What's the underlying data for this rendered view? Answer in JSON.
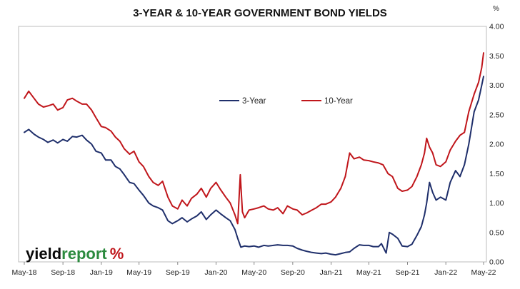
{
  "chart_data": {
    "type": "line",
    "title": "3-YEAR & 10-YEAR GOVERNMENT BOND YIELDS",
    "y_unit": "%",
    "ylim": [
      0,
      4.0
    ],
    "y_ticks": [
      "0.00",
      "0.50",
      "1.00",
      "1.50",
      "2.00",
      "2.50",
      "3.00",
      "3.50",
      "4.00"
    ],
    "x_range": [
      "2018-05-01",
      "2022-05-01"
    ],
    "x_ticks": [
      {
        "label": "May-18",
        "date": "2018-05-01"
      },
      {
        "label": "Sep-18",
        "date": "2018-09-01"
      },
      {
        "label": "Jan-19",
        "date": "2019-01-01"
      },
      {
        "label": "May-19",
        "date": "2019-05-01"
      },
      {
        "label": "Sep-19",
        "date": "2019-09-01"
      },
      {
        "label": "Jan-20",
        "date": "2020-01-01"
      },
      {
        "label": "May-20",
        "date": "2020-05-01"
      },
      {
        "label": "Sep-20",
        "date": "2020-09-01"
      },
      {
        "label": "Jan-21",
        "date": "2021-01-01"
      },
      {
        "label": "May-21",
        "date": "2021-05-01"
      },
      {
        "label": "Sep-21",
        "date": "2021-09-01"
      },
      {
        "label": "Jan-22",
        "date": "2022-01-01"
      },
      {
        "label": "May-22",
        "date": "2022-05-01"
      }
    ],
    "grid": "none",
    "legend_placement": "upper-center",
    "series": [
      {
        "name": "3-Year",
        "color": "#1f2f6b",
        "points": [
          [
            "2018-05-01",
            2.2
          ],
          [
            "2018-05-15",
            2.25
          ],
          [
            "2018-06-01",
            2.17
          ],
          [
            "2018-06-15",
            2.12
          ],
          [
            "2018-07-01",
            2.08
          ],
          [
            "2018-07-15",
            2.03
          ],
          [
            "2018-08-01",
            2.07
          ],
          [
            "2018-08-15",
            2.02
          ],
          [
            "2018-09-01",
            2.08
          ],
          [
            "2018-09-15",
            2.05
          ],
          [
            "2018-10-01",
            2.13
          ],
          [
            "2018-10-15",
            2.12
          ],
          [
            "2018-11-01",
            2.15
          ],
          [
            "2018-11-15",
            2.07
          ],
          [
            "2018-12-01",
            2.0
          ],
          [
            "2018-12-15",
            1.88
          ],
          [
            "2019-01-01",
            1.85
          ],
          [
            "2019-01-15",
            1.73
          ],
          [
            "2019-02-01",
            1.73
          ],
          [
            "2019-02-15",
            1.62
          ],
          [
            "2019-03-01",
            1.58
          ],
          [
            "2019-03-15",
            1.48
          ],
          [
            "2019-04-01",
            1.35
          ],
          [
            "2019-04-15",
            1.33
          ],
          [
            "2019-05-01",
            1.22
          ],
          [
            "2019-05-15",
            1.13
          ],
          [
            "2019-06-01",
            1.0
          ],
          [
            "2019-06-15",
            0.95
          ],
          [
            "2019-07-01",
            0.92
          ],
          [
            "2019-07-15",
            0.88
          ],
          [
            "2019-08-01",
            0.7
          ],
          [
            "2019-08-15",
            0.65
          ],
          [
            "2019-09-01",
            0.7
          ],
          [
            "2019-09-15",
            0.75
          ],
          [
            "2019-10-01",
            0.68
          ],
          [
            "2019-10-15",
            0.73
          ],
          [
            "2019-11-01",
            0.78
          ],
          [
            "2019-11-15",
            0.85
          ],
          [
            "2019-12-01",
            0.72
          ],
          [
            "2019-12-15",
            0.8
          ],
          [
            "2020-01-01",
            0.88
          ],
          [
            "2020-01-15",
            0.82
          ],
          [
            "2020-02-01",
            0.75
          ],
          [
            "2020-02-15",
            0.7
          ],
          [
            "2020-03-01",
            0.55
          ],
          [
            "2020-03-10",
            0.4
          ],
          [
            "2020-03-20",
            0.25
          ],
          [
            "2020-04-01",
            0.27
          ],
          [
            "2020-04-15",
            0.26
          ],
          [
            "2020-05-01",
            0.27
          ],
          [
            "2020-05-15",
            0.25
          ],
          [
            "2020-06-01",
            0.28
          ],
          [
            "2020-06-15",
            0.27
          ],
          [
            "2020-07-01",
            0.28
          ],
          [
            "2020-07-15",
            0.29
          ],
          [
            "2020-08-01",
            0.28
          ],
          [
            "2020-08-15",
            0.28
          ],
          [
            "2020-09-01",
            0.27
          ],
          [
            "2020-09-15",
            0.23
          ],
          [
            "2020-10-01",
            0.2
          ],
          [
            "2020-10-15",
            0.18
          ],
          [
            "2020-11-01",
            0.16
          ],
          [
            "2020-11-15",
            0.15
          ],
          [
            "2020-12-01",
            0.14
          ],
          [
            "2020-12-15",
            0.15
          ],
          [
            "2021-01-01",
            0.13
          ],
          [
            "2021-01-15",
            0.12
          ],
          [
            "2021-02-01",
            0.14
          ],
          [
            "2021-02-15",
            0.16
          ],
          [
            "2021-03-01",
            0.17
          ],
          [
            "2021-03-15",
            0.23
          ],
          [
            "2021-04-01",
            0.29
          ],
          [
            "2021-04-15",
            0.28
          ],
          [
            "2021-05-01",
            0.28
          ],
          [
            "2021-05-15",
            0.26
          ],
          [
            "2021-06-01",
            0.26
          ],
          [
            "2021-06-10",
            0.31
          ],
          [
            "2021-06-25",
            0.15
          ],
          [
            "2021-07-05",
            0.5
          ],
          [
            "2021-07-15",
            0.47
          ],
          [
            "2021-08-01",
            0.4
          ],
          [
            "2021-08-15",
            0.27
          ],
          [
            "2021-09-01",
            0.26
          ],
          [
            "2021-09-15",
            0.3
          ],
          [
            "2021-10-01",
            0.45
          ],
          [
            "2021-10-15",
            0.6
          ],
          [
            "2021-10-25",
            0.8
          ],
          [
            "2021-11-01",
            1.0
          ],
          [
            "2021-11-10",
            1.35
          ],
          [
            "2021-11-20",
            1.18
          ],
          [
            "2021-12-01",
            1.05
          ],
          [
            "2021-12-15",
            1.1
          ],
          [
            "2022-01-01",
            1.05
          ],
          [
            "2022-01-15",
            1.35
          ],
          [
            "2022-02-01",
            1.55
          ],
          [
            "2022-02-15",
            1.45
          ],
          [
            "2022-03-01",
            1.65
          ],
          [
            "2022-03-15",
            2.0
          ],
          [
            "2022-04-01",
            2.55
          ],
          [
            "2022-04-15",
            2.75
          ],
          [
            "2022-04-25",
            3.0
          ],
          [
            "2022-05-01",
            3.15
          ]
        ]
      },
      {
        "name": "10-Year",
        "color": "#c0161b",
        "points": [
          [
            "2018-05-01",
            2.78
          ],
          [
            "2018-05-15",
            2.9
          ],
          [
            "2018-06-01",
            2.78
          ],
          [
            "2018-06-15",
            2.68
          ],
          [
            "2018-07-01",
            2.63
          ],
          [
            "2018-07-15",
            2.65
          ],
          [
            "2018-08-01",
            2.68
          ],
          [
            "2018-08-15",
            2.58
          ],
          [
            "2018-09-01",
            2.62
          ],
          [
            "2018-09-15",
            2.75
          ],
          [
            "2018-10-01",
            2.78
          ],
          [
            "2018-10-15",
            2.73
          ],
          [
            "2018-11-01",
            2.68
          ],
          [
            "2018-11-15",
            2.68
          ],
          [
            "2018-12-01",
            2.58
          ],
          [
            "2018-12-15",
            2.45
          ],
          [
            "2019-01-01",
            2.3
          ],
          [
            "2019-01-15",
            2.28
          ],
          [
            "2019-02-01",
            2.22
          ],
          [
            "2019-02-15",
            2.12
          ],
          [
            "2019-03-01",
            2.05
          ],
          [
            "2019-03-15",
            1.92
          ],
          [
            "2019-04-01",
            1.83
          ],
          [
            "2019-04-15",
            1.88
          ],
          [
            "2019-05-01",
            1.7
          ],
          [
            "2019-05-15",
            1.62
          ],
          [
            "2019-06-01",
            1.45
          ],
          [
            "2019-06-15",
            1.35
          ],
          [
            "2019-07-01",
            1.3
          ],
          [
            "2019-07-15",
            1.37
          ],
          [
            "2019-08-01",
            1.1
          ],
          [
            "2019-08-15",
            0.95
          ],
          [
            "2019-09-01",
            0.9
          ],
          [
            "2019-09-15",
            1.05
          ],
          [
            "2019-10-01",
            0.95
          ],
          [
            "2019-10-15",
            1.08
          ],
          [
            "2019-11-01",
            1.15
          ],
          [
            "2019-11-15",
            1.25
          ],
          [
            "2019-12-01",
            1.1
          ],
          [
            "2019-12-15",
            1.25
          ],
          [
            "2020-01-01",
            1.35
          ],
          [
            "2020-01-15",
            1.23
          ],
          [
            "2020-02-01",
            1.1
          ],
          [
            "2020-02-15",
            1.0
          ],
          [
            "2020-03-01",
            0.8
          ],
          [
            "2020-03-10",
            0.65
          ],
          [
            "2020-03-18",
            1.48
          ],
          [
            "2020-03-25",
            0.85
          ],
          [
            "2020-04-01",
            0.75
          ],
          [
            "2020-04-15",
            0.88
          ],
          [
            "2020-05-01",
            0.9
          ],
          [
            "2020-05-15",
            0.92
          ],
          [
            "2020-06-01",
            0.95
          ],
          [
            "2020-06-15",
            0.9
          ],
          [
            "2020-07-01",
            0.88
          ],
          [
            "2020-07-15",
            0.92
          ],
          [
            "2020-08-01",
            0.82
          ],
          [
            "2020-08-15",
            0.95
          ],
          [
            "2020-09-01",
            0.9
          ],
          [
            "2020-09-15",
            0.88
          ],
          [
            "2020-10-01",
            0.8
          ],
          [
            "2020-10-15",
            0.83
          ],
          [
            "2020-11-01",
            0.88
          ],
          [
            "2020-11-15",
            0.92
          ],
          [
            "2020-12-01",
            0.98
          ],
          [
            "2020-12-15",
            0.98
          ],
          [
            "2021-01-01",
            1.02
          ],
          [
            "2021-01-15",
            1.1
          ],
          [
            "2021-02-01",
            1.25
          ],
          [
            "2021-02-15",
            1.45
          ],
          [
            "2021-03-01",
            1.85
          ],
          [
            "2021-03-15",
            1.75
          ],
          [
            "2021-04-01",
            1.78
          ],
          [
            "2021-04-15",
            1.73
          ],
          [
            "2021-05-01",
            1.72
          ],
          [
            "2021-05-15",
            1.7
          ],
          [
            "2021-06-01",
            1.68
          ],
          [
            "2021-06-15",
            1.65
          ],
          [
            "2021-07-01",
            1.5
          ],
          [
            "2021-07-15",
            1.45
          ],
          [
            "2021-08-01",
            1.25
          ],
          [
            "2021-08-15",
            1.2
          ],
          [
            "2021-09-01",
            1.22
          ],
          [
            "2021-09-15",
            1.28
          ],
          [
            "2021-10-01",
            1.45
          ],
          [
            "2021-10-15",
            1.65
          ],
          [
            "2021-10-25",
            1.85
          ],
          [
            "2021-11-01",
            2.1
          ],
          [
            "2021-11-10",
            1.95
          ],
          [
            "2021-11-20",
            1.85
          ],
          [
            "2021-12-01",
            1.65
          ],
          [
            "2021-12-15",
            1.62
          ],
          [
            "2022-01-01",
            1.7
          ],
          [
            "2022-01-15",
            1.9
          ],
          [
            "2022-02-01",
            2.05
          ],
          [
            "2022-02-15",
            2.15
          ],
          [
            "2022-03-01",
            2.2
          ],
          [
            "2022-03-15",
            2.55
          ],
          [
            "2022-04-01",
            2.85
          ],
          [
            "2022-04-15",
            3.05
          ],
          [
            "2022-04-25",
            3.3
          ],
          [
            "2022-05-01",
            3.55
          ]
        ]
      }
    ]
  },
  "brand": {
    "part1": "yield",
    "part2": "report",
    "symbol": "%",
    "part1_color": "#0a0a0a",
    "part2_color": "#2b8a3e",
    "symbol_color": "#c0161b"
  }
}
